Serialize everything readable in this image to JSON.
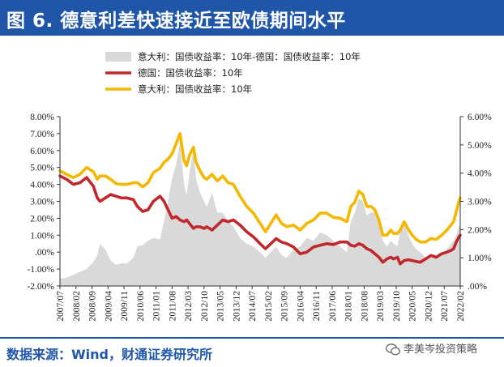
{
  "header": {
    "title": "图 6. 德意利差快速接近至欧债期间水平"
  },
  "footer": {
    "source": "数据来源：Wind，财通证券研究所",
    "watermark": "李美岑投资策略"
  },
  "colors": {
    "title_bg": "#1f56a8",
    "spread": "#d9d9d9",
    "germany": "#c0282c",
    "italy": "#f5b800"
  },
  "chart_data": {
    "type": "line",
    "left_axis": {
      "ticks": [
        -2,
        -1,
        0,
        1,
        2,
        3,
        4,
        5,
        6,
        7,
        8
      ],
      "tick_labels": [
        "-2.00%",
        "-1.00%",
        ".00%",
        "1.00%",
        "2.00%",
        "3.00%",
        "4.00%",
        "5.00%",
        "6.00%",
        "7.00%",
        "8.00%"
      ],
      "range": [
        -2,
        8
      ]
    },
    "right_axis": {
      "ticks": [
        0,
        1,
        2,
        3,
        4,
        5,
        6
      ],
      "tick_labels": [
        ".00%",
        "1.00%",
        "2.00%",
        "3.00%",
        "4.00%",
        "5.00%",
        "6.00%"
      ],
      "range": [
        0,
        6
      ]
    },
    "x_tick_labels": [
      "2007/07",
      "2008/02",
      "2008/09",
      "2009/04",
      "2009/11",
      "2010/06",
      "2011/01",
      "2011/08",
      "2012/03",
      "2012/10",
      "2013/05",
      "2013/12",
      "2014/07",
      "2015/02",
      "2015/09",
      "2016/04",
      "2016/11",
      "2017/06",
      "2018/01",
      "2018/08",
      "2019/03",
      "2019/10",
      "2020/05",
      "2020/12",
      "2021/07",
      "2022/02"
    ],
    "x_range": [
      2007.5,
      2022.5
    ],
    "series": [
      {
        "name": "意大利：国债收益率：10年-德国：国债收益率：10年",
        "type": "area",
        "axis": "right",
        "x": [
          2007.5,
          2007.75,
          2008.0,
          2008.25,
          2008.5,
          2008.75,
          2008.9,
          2009.0,
          2009.2,
          2009.4,
          2009.6,
          2009.8,
          2010.0,
          2010.25,
          2010.4,
          2010.6,
          2010.8,
          2011.0,
          2011.25,
          2011.4,
          2011.55,
          2011.7,
          2011.85,
          2012.0,
          2012.15,
          2012.25,
          2012.35,
          2012.5,
          2012.6,
          2012.75,
          2012.9,
          2013.0,
          2013.2,
          2013.4,
          2013.6,
          2013.8,
          2014.0,
          2014.25,
          2014.5,
          2014.75,
          2015.0,
          2015.2,
          2015.4,
          2015.6,
          2015.8,
          2016.0,
          2016.25,
          2016.5,
          2016.75,
          2017.0,
          2017.25,
          2017.5,
          2017.75,
          2018.0,
          2018.25,
          2018.4,
          2018.55,
          2018.7,
          2018.85,
          2019.0,
          2019.15,
          2019.3,
          2019.45,
          2019.6,
          2019.75,
          2019.9,
          2020.0,
          2020.15,
          2020.25,
          2020.4,
          2020.55,
          2020.7,
          2020.85,
          2021.0,
          2021.2,
          2021.4,
          2021.6,
          2021.8,
          2022.0,
          2022.15,
          2022.25,
          2022.35,
          2022.45,
          2022.5
        ],
        "values": [
          0.25,
          0.3,
          0.4,
          0.5,
          0.6,
          0.85,
          1.1,
          1.5,
          1.3,
          0.9,
          0.75,
          0.8,
          0.8,
          1.0,
          1.4,
          1.45,
          1.6,
          1.7,
          1.65,
          2.3,
          3.0,
          3.8,
          4.3,
          5.1,
          3.6,
          3.2,
          4.0,
          4.8,
          3.8,
          3.3,
          3.0,
          2.8,
          3.3,
          2.6,
          2.6,
          2.3,
          2.1,
          1.7,
          1.5,
          1.4,
          1.2,
          1.0,
          1.2,
          1.4,
          1.1,
          1.0,
          1.3,
          1.4,
          1.7,
          1.6,
          1.9,
          1.8,
          1.6,
          1.4,
          1.2,
          2.3,
          2.6,
          3.1,
          3.0,
          2.5,
          2.6,
          2.6,
          2.2,
          1.6,
          1.4,
          1.6,
          1.5,
          1.4,
          2.0,
          2.3,
          1.8,
          1.5,
          1.3,
          1.2,
          1.0,
          1.0,
          1.05,
          1.1,
          1.3,
          1.5,
          1.6,
          1.8,
          2.1,
          2.2
        ]
      },
      {
        "name": "德国：国债收益率：10年",
        "type": "line",
        "axis": "left",
        "x": [
          2007.5,
          2007.75,
          2008.0,
          2008.25,
          2008.5,
          2008.75,
          2008.9,
          2009.0,
          2009.2,
          2009.4,
          2009.6,
          2009.8,
          2010.0,
          2010.25,
          2010.4,
          2010.6,
          2010.8,
          2011.0,
          2011.25,
          2011.4,
          2011.55,
          2011.7,
          2011.85,
          2012.0,
          2012.15,
          2012.25,
          2012.35,
          2012.5,
          2012.6,
          2012.75,
          2012.9,
          2013.0,
          2013.2,
          2013.4,
          2013.6,
          2013.8,
          2014.0,
          2014.25,
          2014.5,
          2014.75,
          2015.0,
          2015.2,
          2015.4,
          2015.6,
          2015.8,
          2016.0,
          2016.25,
          2016.5,
          2016.75,
          2017.0,
          2017.25,
          2017.5,
          2017.75,
          2018.0,
          2018.25,
          2018.4,
          2018.55,
          2018.7,
          2018.85,
          2019.0,
          2019.15,
          2019.3,
          2019.45,
          2019.6,
          2019.75,
          2019.9,
          2020.0,
          2020.15,
          2020.25,
          2020.4,
          2020.55,
          2020.7,
          2020.85,
          2021.0,
          2021.2,
          2021.4,
          2021.6,
          2021.8,
          2022.0,
          2022.15,
          2022.25,
          2022.35,
          2022.45,
          2022.5
        ],
        "values": [
          4.5,
          4.3,
          4.0,
          4.1,
          4.4,
          3.9,
          3.2,
          3.0,
          3.2,
          3.4,
          3.3,
          3.2,
          3.2,
          3.1,
          2.7,
          2.4,
          2.5,
          3.0,
          3.3,
          3.0,
          2.5,
          2.0,
          2.1,
          1.9,
          1.8,
          1.9,
          1.7,
          1.4,
          1.5,
          1.5,
          1.4,
          1.5,
          1.3,
          1.6,
          1.9,
          1.8,
          1.9,
          1.6,
          1.2,
          0.9,
          0.5,
          0.2,
          0.5,
          0.8,
          0.6,
          0.5,
          0.3,
          -0.1,
          0.0,
          0.3,
          0.4,
          0.5,
          0.45,
          0.6,
          0.6,
          0.4,
          0.35,
          0.5,
          0.4,
          0.2,
          0.1,
          -0.1,
          -0.3,
          -0.6,
          -0.4,
          -0.3,
          -0.4,
          -0.3,
          -0.7,
          -0.5,
          -0.45,
          -0.5,
          -0.55,
          -0.6,
          -0.4,
          -0.2,
          -0.3,
          -0.1,
          0.0,
          0.1,
          0.2,
          0.6,
          0.9,
          1.0
        ]
      },
      {
        "name": "意大利：国债收益率：10年",
        "type": "line",
        "axis": "left",
        "x": [
          2007.5,
          2007.75,
          2008.0,
          2008.25,
          2008.5,
          2008.75,
          2008.9,
          2009.0,
          2009.2,
          2009.4,
          2009.6,
          2009.8,
          2010.0,
          2010.25,
          2010.4,
          2010.6,
          2010.8,
          2011.0,
          2011.25,
          2011.4,
          2011.55,
          2011.7,
          2011.85,
          2012.0,
          2012.15,
          2012.25,
          2012.35,
          2012.5,
          2012.6,
          2012.75,
          2012.9,
          2013.0,
          2013.2,
          2013.4,
          2013.6,
          2013.8,
          2014.0,
          2014.25,
          2014.5,
          2014.75,
          2015.0,
          2015.2,
          2015.4,
          2015.6,
          2015.8,
          2016.0,
          2016.25,
          2016.5,
          2016.75,
          2017.0,
          2017.25,
          2017.5,
          2017.75,
          2018.0,
          2018.25,
          2018.4,
          2018.55,
          2018.7,
          2018.85,
          2019.0,
          2019.15,
          2019.3,
          2019.45,
          2019.6,
          2019.75,
          2019.9,
          2020.0,
          2020.15,
          2020.25,
          2020.4,
          2020.55,
          2020.7,
          2020.85,
          2021.0,
          2021.2,
          2021.4,
          2021.6,
          2021.8,
          2022.0,
          2022.15,
          2022.25,
          2022.35,
          2022.45,
          2022.5
        ],
        "values": [
          4.8,
          4.6,
          4.4,
          4.6,
          5.0,
          4.75,
          4.3,
          4.5,
          4.5,
          4.3,
          4.05,
          4.0,
          4.0,
          4.1,
          4.1,
          3.85,
          4.1,
          4.7,
          4.95,
          5.3,
          5.5,
          5.8,
          6.4,
          7.0,
          5.4,
          5.1,
          5.7,
          6.2,
          5.3,
          4.8,
          4.4,
          4.3,
          4.6,
          4.2,
          4.5,
          4.1,
          4.0,
          3.3,
          2.7,
          2.3,
          1.7,
          1.2,
          1.7,
          2.2,
          1.7,
          1.5,
          1.6,
          1.3,
          1.7,
          1.9,
          2.3,
          2.3,
          2.05,
          2.0,
          1.8,
          2.7,
          2.95,
          3.6,
          3.4,
          2.7,
          2.7,
          2.5,
          1.9,
          1.0,
          1.0,
          1.3,
          1.1,
          1.1,
          1.3,
          1.8,
          1.35,
          1.0,
          0.75,
          0.6,
          0.6,
          0.8,
          0.75,
          1.0,
          1.3,
          1.6,
          1.8,
          2.4,
          3.0,
          3.2
        ]
      }
    ]
  }
}
